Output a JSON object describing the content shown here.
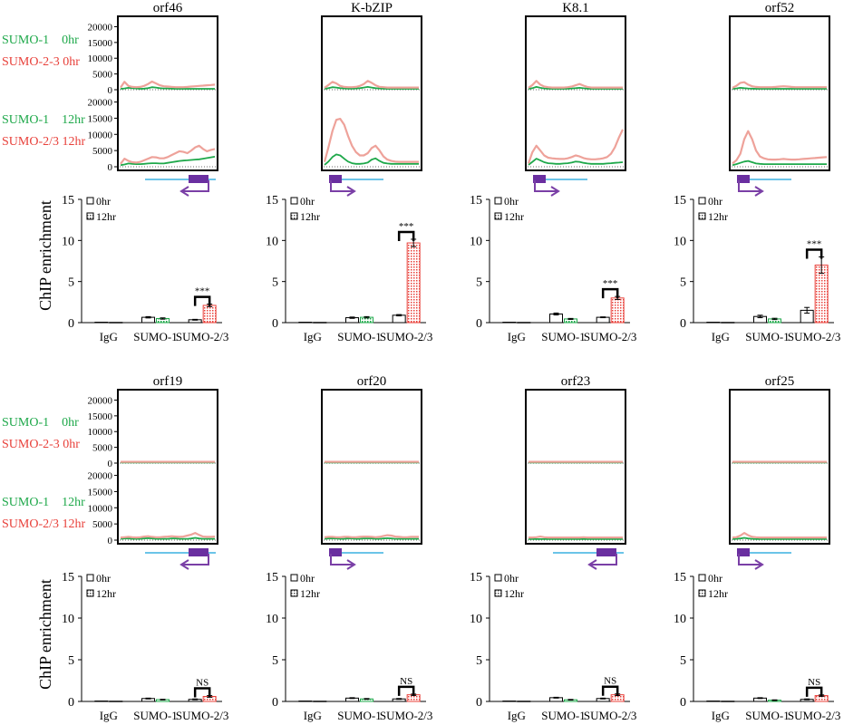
{
  "colors": {
    "sumo1": "#1ea84a",
    "sumo1_light": "#7fcc95",
    "sumo23": "#e8403a",
    "sumo23_light": "#eea29a",
    "gene_arrow": "#7a3fa6",
    "gene_box": "#6a2fa0",
    "gene_line": "#3ab0e0",
    "frame": "#000000"
  },
  "track_labels": {
    "sumo1_0hr": "SUMO-1    0hr",
    "sumo23_0hr": "SUMO-2-3 0hr",
    "sumo1_12hr": "SUMO-1    12hr",
    "sumo23_12hr": "SUMO-2/3 12hr"
  },
  "track_yticks": [
    "20000",
    "15000",
    "10000",
    "5000",
    "0"
  ],
  "bar_ylabel": "ChIP enrichment",
  "legend": {
    "zero": "0hr",
    "twelve": "12hr"
  },
  "chart_data": [
    {
      "type": "line",
      "title": "orf46",
      "gene": {
        "direction": "left",
        "box": "end"
      },
      "tracks": {
        "sumo1_0hr": [
          300,
          400,
          600,
          500,
          400,
          300,
          350,
          500,
          800,
          700,
          500,
          400,
          400,
          350,
          300,
          300,
          300,
          300,
          300,
          300,
          300,
          300,
          300,
          300,
          300
        ],
        "sumo23_0hr": [
          700,
          2500,
          1200,
          900,
          800,
          900,
          1200,
          1800,
          2600,
          2000,
          1400,
          1100,
          1000,
          900,
          800,
          800,
          800,
          900,
          1000,
          1100,
          1200,
          1300,
          1400,
          1500,
          1600
        ],
        "sumo1_12hr": [
          500,
          700,
          1000,
          900,
          800,
          800,
          900,
          1000,
          1100,
          1100,
          1000,
          1000,
          1200,
          1400,
          1600,
          1800,
          1900,
          2000,
          2100,
          2200,
          2300,
          2500,
          2700,
          2900,
          3100
        ],
        "sumo23_12hr": [
          900,
          2500,
          1800,
          1400,
          1300,
          1500,
          2000,
          2500,
          3000,
          2900,
          2600,
          2600,
          3000,
          3600,
          4200,
          4800,
          4600,
          4200,
          5000,
          6000,
          6500,
          5500,
          4800,
          5200,
          5500
        ]
      },
      "bars": {
        "categories": [
          "IgG",
          "SUMO-1",
          "SUMO-2/3"
        ],
        "ylim": [
          0,
          15
        ],
        "yticks": [
          0,
          5,
          10,
          15
        ],
        "zero": [
          0.05,
          0.65,
          0.35
        ],
        "twelve": [
          0.03,
          0.5,
          2.1
        ],
        "err_zero": [
          0.02,
          0.08,
          0.05
        ],
        "err_twelve": [
          0.02,
          0.08,
          0.15
        ],
        "sig": "***"
      }
    },
    {
      "type": "line",
      "title": "K-bZIP",
      "gene": {
        "direction": "right",
        "box": "start"
      },
      "tracks": {
        "sumo1_0hr": [
          300,
          500,
          800,
          700,
          500,
          400,
          350,
          350,
          400,
          500,
          700,
          900,
          700,
          500,
          400,
          350,
          300,
          300,
          300,
          300,
          300,
          300,
          300,
          300,
          300
        ],
        "sumo23_0hr": [
          600,
          1500,
          2500,
          2000,
          1200,
          900,
          800,
          800,
          900,
          1200,
          1800,
          2800,
          2200,
          1400,
          900,
          800,
          700,
          700,
          700,
          700,
          700,
          700,
          700,
          700,
          700
        ],
        "sumo1_12hr": [
          600,
          1600,
          3000,
          3800,
          3500,
          2500,
          1600,
          1100,
          900,
          900,
          1000,
          1300,
          2200,
          2600,
          1800,
          1200,
          1000,
          900,
          900,
          900,
          900,
          900,
          900,
          900,
          900
        ],
        "sumo23_12hr": [
          1500,
          6000,
          11000,
          14500,
          14800,
          13000,
          9500,
          6500,
          4500,
          3500,
          3500,
          4200,
          5800,
          6500,
          5000,
          3200,
          2200,
          1800,
          1600,
          1500,
          1500,
          1500,
          1500,
          1500,
          1500
        ]
      },
      "bars": {
        "categories": [
          "IgG",
          "SUMO-1",
          "SUMO-2/3"
        ],
        "ylim": [
          0,
          15
        ],
        "yticks": [
          0,
          5,
          10,
          15
        ],
        "zero": [
          0.05,
          0.6,
          0.9
        ],
        "twelve": [
          0.03,
          0.65,
          9.7
        ],
        "err_zero": [
          0.02,
          0.08,
          0.08
        ],
        "err_twelve": [
          0.02,
          0.08,
          0.45
        ],
        "sig": "***"
      }
    },
    {
      "type": "line",
      "title": "K8.1",
      "gene": {
        "direction": "right",
        "box": "start"
      },
      "tracks": {
        "sumo1_0hr": [
          300,
          500,
          900,
          600,
          400,
          350,
          300,
          300,
          300,
          300,
          350,
          400,
          500,
          600,
          450,
          350,
          300,
          300,
          300,
          300,
          300,
          300,
          300,
          300,
          300
        ],
        "sumo23_0hr": [
          600,
          1500,
          2800,
          1600,
          1000,
          800,
          700,
          700,
          700,
          700,
          800,
          1000,
          1400,
          1800,
          1300,
          900,
          700,
          700,
          700,
          700,
          700,
          700,
          700,
          700,
          700
        ],
        "sumo1_12hr": [
          600,
          1500,
          2500,
          2000,
          1400,
          1100,
          1000,
          900,
          900,
          1000,
          1100,
          1300,
          1600,
          1500,
          1200,
          1000,
          900,
          900,
          900,
          900,
          1000,
          1100,
          1200,
          1300,
          1400
        ],
        "sumo23_12hr": [
          1000,
          4500,
          6500,
          5000,
          3500,
          2800,
          2600,
          2500,
          2400,
          2400,
          2600,
          3000,
          3500,
          3200,
          2700,
          2400,
          2300,
          2300,
          2400,
          2600,
          3000,
          4000,
          6000,
          9000,
          11500
        ]
      },
      "bars": {
        "categories": [
          "IgG",
          "SUMO-1",
          "SUMO-2/3"
        ],
        "ylim": [
          0,
          15
        ],
        "yticks": [
          0,
          5,
          10,
          15
        ],
        "zero": [
          0.05,
          1.05,
          0.65
        ],
        "twelve": [
          0.03,
          0.45,
          3.0
        ],
        "err_zero": [
          0.02,
          0.12,
          0.05
        ],
        "err_twelve": [
          0.02,
          0.06,
          0.18
        ],
        "sig": "***"
      }
    },
    {
      "type": "line",
      "title": "orf52",
      "gene": {
        "direction": "right",
        "box": "start"
      },
      "tracks": {
        "sumo1_0hr": [
          300,
          400,
          600,
          500,
          400,
          350,
          300,
          300,
          300,
          300,
          300,
          300,
          300,
          300,
          300,
          300,
          300,
          300,
          300,
          300,
          300,
          300,
          300,
          300,
          300
        ],
        "sumo23_0hr": [
          600,
          1200,
          2200,
          2400,
          1600,
          1100,
          900,
          800,
          800,
          800,
          800,
          900,
          1000,
          1100,
          1000,
          900,
          800,
          800,
          800,
          800,
          800,
          800,
          800,
          800,
          800
        ],
        "sumo1_12hr": [
          500,
          800,
          1200,
          1600,
          1800,
          1400,
          1000,
          900,
          800,
          800,
          800,
          800,
          800,
          800,
          800,
          800,
          800,
          800,
          800,
          800,
          800,
          800,
          800,
          800,
          800
        ],
        "sumo23_12hr": [
          1000,
          2000,
          4000,
          8500,
          11000,
          8500,
          5000,
          3200,
          2600,
          2300,
          2200,
          2200,
          2300,
          2400,
          2300,
          2200,
          2200,
          2300,
          2400,
          2500,
          2600,
          2700,
          2800,
          2900,
          3000
        ]
      },
      "bars": {
        "categories": [
          "IgG",
          "SUMO-1",
          "SUMO-2/3"
        ],
        "ylim": [
          0,
          15
        ],
        "yticks": [
          0,
          5,
          10,
          15
        ],
        "zero": [
          0.05,
          0.75,
          1.5
        ],
        "twelve": [
          0.03,
          0.45,
          7.0
        ],
        "err_zero": [
          0.02,
          0.15,
          0.35
        ],
        "err_twelve": [
          0.02,
          0.08,
          1.0
        ],
        "sig": "***"
      }
    },
    {
      "type": "line",
      "title": "orf19",
      "gene": {
        "direction": "left",
        "box": "end"
      },
      "tracks": {
        "sumo1_0hr": [
          200,
          200,
          200,
          200,
          200,
          200,
          200,
          200,
          200,
          200,
          200,
          200,
          200,
          200,
          200,
          200,
          200,
          200,
          200,
          200,
          200,
          200,
          200,
          200,
          200
        ],
        "sumo23_0hr": [
          400,
          400,
          400,
          400,
          400,
          400,
          400,
          400,
          400,
          400,
          400,
          400,
          400,
          400,
          400,
          400,
          400,
          400,
          400,
          400,
          400,
          400,
          400,
          400,
          400
        ],
        "sumo1_12hr": [
          400,
          500,
          500,
          400,
          400,
          400,
          500,
          600,
          500,
          400,
          400,
          400,
          400,
          500,
          500,
          400,
          400,
          400,
          500,
          700,
          500,
          400,
          400,
          400,
          400
        ],
        "sumo23_12hr": [
          800,
          900,
          1000,
          900,
          800,
          900,
          1100,
          1200,
          1000,
          900,
          900,
          1000,
          1100,
          1200,
          1100,
          1000,
          1100,
          1400,
          1700,
          2200,
          1600,
          1100,
          1000,
          1000,
          1100
        ]
      },
      "bars": {
        "categories": [
          "IgG",
          "SUMO-1",
          "SUMO-2/3"
        ],
        "ylim": [
          0,
          15
        ],
        "yticks": [
          0,
          5,
          10,
          15
        ],
        "zero": [
          0.05,
          0.35,
          0.25
        ],
        "twelve": [
          0.03,
          0.22,
          0.6
        ],
        "err_zero": [
          0.02,
          0.05,
          0.05
        ],
        "err_twelve": [
          0.02,
          0.04,
          0.1
        ],
        "sig": "NS"
      }
    },
    {
      "type": "line",
      "title": "orf20",
      "gene": {
        "direction": "right",
        "box": "start"
      },
      "tracks": {
        "sumo1_0hr": [
          200,
          200,
          200,
          200,
          200,
          200,
          200,
          200,
          200,
          200,
          200,
          200,
          200,
          200,
          200,
          200,
          200,
          200,
          200,
          200,
          200,
          200,
          200,
          200,
          200
        ],
        "sumo23_0hr": [
          400,
          400,
          400,
          400,
          400,
          400,
          400,
          400,
          400,
          400,
          400,
          400,
          400,
          400,
          400,
          400,
          400,
          400,
          400,
          400,
          400,
          400,
          400,
          400,
          400
        ],
        "sumo1_12hr": [
          400,
          500,
          500,
          500,
          400,
          400,
          500,
          500,
          400,
          400,
          500,
          500,
          500,
          400,
          400,
          500,
          600,
          500,
          400,
          400,
          400,
          400,
          400,
          400,
          400
        ],
        "sumo23_12hr": [
          900,
          1000,
          1000,
          900,
          900,
          1000,
          1000,
          900,
          900,
          1000,
          1100,
          1100,
          1000,
          900,
          1000,
          1300,
          1500,
          1400,
          1100,
          1000,
          900,
          900,
          1000,
          1000,
          1000
        ]
      },
      "bars": {
        "categories": [
          "IgG",
          "SUMO-1",
          "SUMO-2/3"
        ],
        "ylim": [
          0,
          15
        ],
        "yticks": [
          0,
          5,
          10,
          15
        ],
        "zero": [
          0.05,
          0.4,
          0.3
        ],
        "twelve": [
          0.03,
          0.3,
          0.8
        ],
        "err_zero": [
          0.02,
          0.05,
          0.05
        ],
        "err_twelve": [
          0.02,
          0.05,
          0.08
        ],
        "sig": "NS"
      }
    },
    {
      "type": "line",
      "title": "orf23",
      "gene": {
        "direction": "left",
        "box": "end"
      },
      "tracks": {
        "sumo1_0hr": [
          200,
          200,
          200,
          200,
          200,
          200,
          200,
          200,
          200,
          200,
          200,
          200,
          200,
          200,
          200,
          200,
          200,
          200,
          200,
          200,
          200,
          200,
          200,
          200,
          200
        ],
        "sumo23_0hr": [
          400,
          400,
          400,
          400,
          400,
          400,
          400,
          400,
          400,
          400,
          400,
          400,
          400,
          400,
          400,
          400,
          400,
          400,
          400,
          400,
          400,
          400,
          400,
          400,
          400
        ],
        "sumo1_12hr": [
          300,
          300,
          300,
          300,
          300,
          300,
          300,
          300,
          300,
          300,
          300,
          300,
          300,
          300,
          300,
          300,
          300,
          300,
          300,
          300,
          300,
          300,
          300,
          300,
          300
        ],
        "sumo23_12hr": [
          800,
          800,
          900,
          1100,
          900,
          800,
          800,
          800,
          800,
          800,
          800,
          800,
          800,
          800,
          900,
          800,
          800,
          800,
          800,
          800,
          800,
          800,
          800,
          800,
          800
        ]
      },
      "bars": {
        "categories": [
          "IgG",
          "SUMO-1",
          "SUMO-2/3"
        ],
        "ylim": [
          0,
          15
        ],
        "yticks": [
          0,
          5,
          10,
          15
        ],
        "zero": [
          0.05,
          0.45,
          0.35
        ],
        "twelve": [
          0.03,
          0.2,
          0.8
        ],
        "err_zero": [
          0.02,
          0.05,
          0.05
        ],
        "err_twelve": [
          0.02,
          0.04,
          0.1
        ],
        "sig": "NS"
      }
    },
    {
      "type": "line",
      "title": "orf25",
      "gene": {
        "direction": "right",
        "box": "start"
      },
      "tracks": {
        "sumo1_0hr": [
          200,
          200,
          200,
          200,
          200,
          200,
          200,
          200,
          200,
          200,
          200,
          200,
          200,
          200,
          200,
          200,
          200,
          200,
          200,
          200,
          200,
          200,
          200,
          200,
          200
        ],
        "sumo23_0hr": [
          400,
          400,
          400,
          400,
          400,
          400,
          400,
          400,
          400,
          400,
          400,
          400,
          400,
          400,
          400,
          400,
          400,
          400,
          400,
          400,
          400,
          400,
          400,
          400,
          400
        ],
        "sumo1_12hr": [
          300,
          400,
          500,
          700,
          500,
          400,
          300,
          300,
          300,
          300,
          300,
          300,
          300,
          300,
          300,
          300,
          300,
          300,
          300,
          300,
          300,
          300,
          300,
          300,
          300
        ],
        "sumo23_12hr": [
          800,
          900,
          1400,
          2200,
          1500,
          1000,
          900,
          800,
          800,
          800,
          800,
          800,
          800,
          800,
          800,
          800,
          800,
          800,
          800,
          800,
          800,
          800,
          800,
          800,
          800
        ]
      },
      "bars": {
        "categories": [
          "IgG",
          "SUMO-1",
          "SUMO-2/3"
        ],
        "ylim": [
          0,
          15
        ],
        "yticks": [
          0,
          5,
          10,
          15
        ],
        "zero": [
          0.05,
          0.4,
          0.25
        ],
        "twelve": [
          0.03,
          0.15,
          0.7
        ],
        "err_zero": [
          0.02,
          0.05,
          0.05
        ],
        "err_twelve": [
          0.02,
          0.04,
          0.08
        ],
        "sig": "NS"
      }
    }
  ]
}
